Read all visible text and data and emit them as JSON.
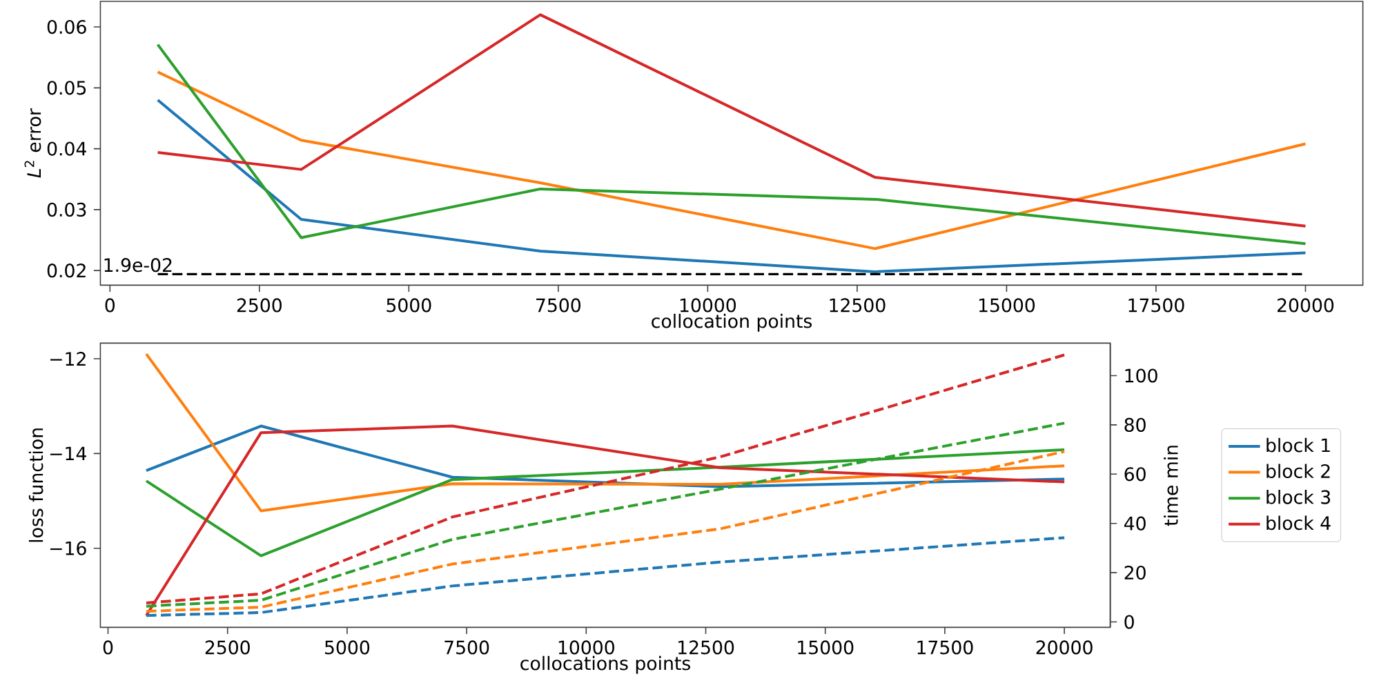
{
  "chart_data": [
    {
      "type": "line",
      "xlabel": "collocation points",
      "ylabel": "*L*$^{2}$ error",
      "x": [
        800,
        3200,
        7200,
        12800,
        20000
      ],
      "xlim": [
        -160,
        20960
      ],
      "ylim": [
        0.0176,
        0.0642
      ],
      "xticks": [
        0,
        2500,
        5000,
        7500,
        10000,
        12500,
        15000,
        17500,
        20000
      ],
      "yticks": [
        0.02,
        0.03,
        0.04,
        0.05,
        0.06
      ],
      "series": [
        {
          "color": "#1f77b4",
          "values": [
            0.048,
            0.0284,
            0.0232,
            0.0198,
            0.0229
          ]
        },
        {
          "color": "#ff7f0e",
          "values": [
            0.0526,
            0.0414,
            0.0344,
            0.0236,
            0.0408
          ]
        },
        {
          "color": "#2ca02c",
          "values": [
            0.0571,
            0.0254,
            0.0334,
            0.0317,
            0.0244
          ]
        },
        {
          "color": "#d62728",
          "values": [
            0.0394,
            0.0366,
            0.062,
            0.0353,
            0.0273
          ]
        }
      ],
      "ref_lines": [
        {
          "axis": "y",
          "value": 0.0194,
          "label": "1.9e-02",
          "color": "#000000",
          "line_style": "dashed"
        }
      ]
    },
    {
      "type": "line",
      "xlabel": "collocations points",
      "ylabel": "loss function",
      "y2label": "time min",
      "x": [
        800,
        3200,
        7200,
        12800,
        20000
      ],
      "xlim": [
        -160,
        20960
      ],
      "ylim": [
        -17.67,
        -11.67
      ],
      "y2lim": [
        -2.2,
        113.2
      ],
      "xticks": [
        0,
        2500,
        5000,
        7500,
        10000,
        12500,
        15000,
        17500,
        20000
      ],
      "yticks": [
        {
          "value": -16,
          "label": "−16"
        },
        {
          "value": -14,
          "label": "−14"
        },
        {
          "value": -12,
          "label": "−12"
        }
      ],
      "y2ticks": [
        0,
        20,
        40,
        60,
        80,
        100
      ],
      "legend": "right",
      "series": [
        {
          "name": "block 1",
          "color": "#1f77b4",
          "values": [
            -14.36,
            -13.42,
            -14.5,
            -14.7,
            -14.54
          ]
        },
        {
          "name": "block 2",
          "color": "#ff7f0e",
          "values": [
            -11.9,
            -15.21,
            -14.64,
            -14.65,
            -14.26
          ]
        },
        {
          "name": "block 3",
          "color": "#2ca02c",
          "values": [
            -14.58,
            -16.16,
            -14.55,
            -14.29,
            -13.92
          ]
        },
        {
          "name": "block 4",
          "color": "#d62728",
          "values": [
            -17.42,
            -13.56,
            -13.42,
            -14.3,
            -14.6
          ]
        },
        {
          "color": "#1f77b4",
          "axis": "y2",
          "line_style": "dashed",
          "values": [
            2.6,
            3.8,
            14.6,
            24.3,
            34.2
          ]
        },
        {
          "color": "#ff7f0e",
          "axis": "y2",
          "line_style": "dashed",
          "values": [
            4.3,
            6.0,
            23.5,
            37.8,
            69.2
          ]
        },
        {
          "color": "#2ca02c",
          "axis": "y2",
          "line_style": "dashed",
          "values": [
            6.4,
            8.8,
            33.5,
            53.9,
            80.7
          ]
        },
        {
          "color": "#d62728",
          "axis": "y2",
          "line_style": "dashed",
          "values": [
            7.7,
            11.4,
            42.6,
            67.0,
            108.4
          ]
        }
      ]
    }
  ]
}
